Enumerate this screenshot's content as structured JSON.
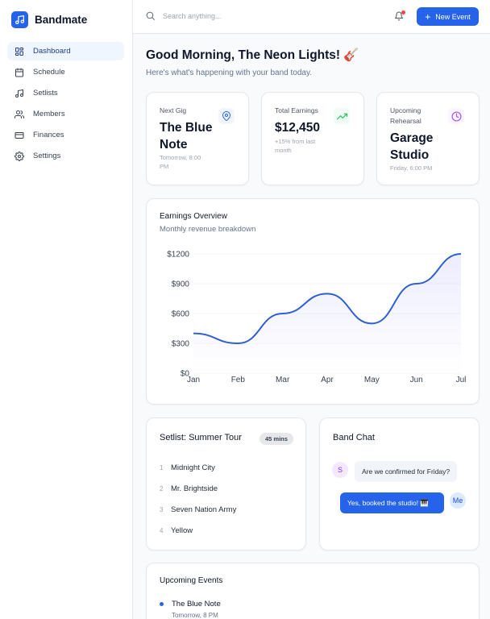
{
  "app": {
    "name": "Bandmate"
  },
  "sidebar": {
    "items": [
      {
        "label": "Dashboard",
        "icon": "dashboard-icon",
        "active": true
      },
      {
        "label": "Schedule",
        "icon": "calendar-icon"
      },
      {
        "label": "Setlists",
        "icon": "music-note-icon"
      },
      {
        "label": "Members",
        "icon": "users-icon"
      },
      {
        "label": "Finances",
        "icon": "credit-card-icon"
      },
      {
        "label": "Settings",
        "icon": "gear-icon"
      }
    ]
  },
  "header": {
    "search_placeholder": "Search anything...",
    "new_event_label": "New Event"
  },
  "main": {
    "greeting": "Good Morning, The Neon Lights! 🎸",
    "subgreeting": "Here's what's happening with your band today."
  },
  "stats": {
    "next_gig": {
      "label": "Next Gig",
      "value_line1": "The Blue",
      "value_line2": "Note",
      "sub_line1": "Tomorrow, 8:00",
      "sub_line2": "PM"
    },
    "earnings": {
      "label": "Total Earnings",
      "value": "$12,450",
      "sub_line1": "+15% from last",
      "sub_line2": "month"
    },
    "rehearsal": {
      "label_line1": "Upcoming",
      "label_line2": "Rehearsal",
      "value_line1": "Garage",
      "value_line2": "Studio",
      "sub": "Friday, 6:00 PM"
    }
  },
  "earnings_chart": {
    "title": "Earnings Overview",
    "subtitle": "Monthly revenue breakdown"
  },
  "chart_data": {
    "type": "area",
    "title": "Earnings Overview",
    "subtitle": "Monthly revenue breakdown",
    "categories": [
      "Jan",
      "Feb",
      "Mar",
      "Apr",
      "May",
      "Jun",
      "Jul"
    ],
    "values": [
      400,
      300,
      600,
      800,
      500,
      900,
      1200
    ],
    "ylim": [
      0,
      1200
    ],
    "yticks": [
      0,
      300,
      600,
      900,
      1200
    ],
    "ytick_labels": [
      "$0",
      "$300",
      "$600",
      "$900",
      "$1200"
    ],
    "grid": true,
    "color": "#2f5fd0"
  },
  "setlist": {
    "title": "Setlist: Summer Tour",
    "duration": "45 mins",
    "songs": [
      {
        "num": "1",
        "title": "Midnight City"
      },
      {
        "num": "2",
        "title": "Mr. Brightside"
      },
      {
        "num": "3",
        "title": "Seven Nation Army"
      },
      {
        "num": "4",
        "title": "Yellow"
      }
    ]
  },
  "chat": {
    "title": "Band Chat",
    "messages": [
      {
        "avatar": "S",
        "text": "Are we confirmed for Friday?"
      },
      {
        "avatar": "Me",
        "text": "Yes, booked the studio! 🎹"
      }
    ]
  },
  "events": {
    "title": "Upcoming Events",
    "items": [
      {
        "title": "The Blue Note",
        "sub": "Tomorrow, 8 PM"
      }
    ]
  },
  "colors": {
    "accent": "#2563eb",
    "success": "#22c55e",
    "purple": "#a855f7"
  }
}
